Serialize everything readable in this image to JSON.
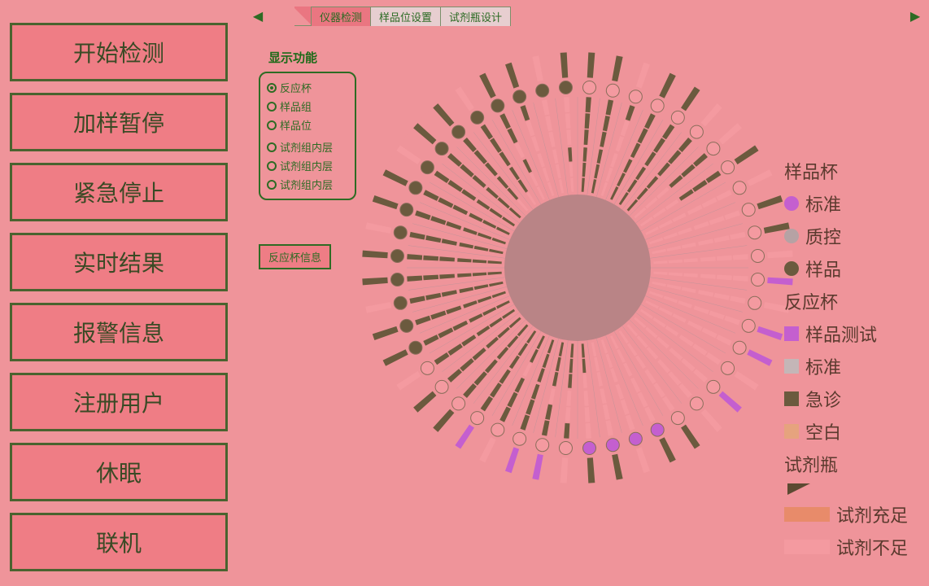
{
  "colors": {
    "bg": "#ef949a",
    "btn_bg": "#ef7d85",
    "btn_border": "#4a632f",
    "text_green": "#2e6b24",
    "brown_dark": "#6b5a3e",
    "brown_mid": "#9a8661",
    "pink_salmon": "#f49aa0",
    "coral": "#e88b6a",
    "magenta": "#c45fcf",
    "purple_dark": "#a54fb3",
    "grey": "#b6a2a4",
    "inner_bg": "#b98486"
  },
  "sidebar": {
    "buttons": [
      "开始检测",
      "加样暂停",
      "紧急停止",
      "实时结果",
      "报警信息",
      "注册用户",
      "休眠",
      "联机"
    ]
  },
  "tabs": [
    {
      "label": "仪器检测",
      "active": true
    },
    {
      "label": "样品位设置",
      "active": false
    },
    {
      "label": "试剂瓶设计",
      "active": false
    }
  ],
  "options": {
    "title": "显示功能",
    "group1": [
      {
        "label": "反应杯",
        "checked": true
      },
      {
        "label": "样品组",
        "checked": false
      },
      {
        "label": "样品位",
        "checked": false
      }
    ],
    "group2": [
      {
        "label": "试剂组内层",
        "checked": false
      },
      {
        "label": "试剂组内层",
        "checked": false
      },
      {
        "label": "试剂组内层",
        "checked": false
      }
    ],
    "button": "反应杯信息"
  },
  "legend": {
    "sample_cup_header": "样品杯",
    "sample_cup_items": [
      {
        "label": "标准",
        "color": "#c45fcf",
        "shape": "circle"
      },
      {
        "label": "质控",
        "color": "#b6a2a4",
        "shape": "circle"
      },
      {
        "label": "样品",
        "color": "#6b5a3e",
        "shape": "circle"
      }
    ],
    "reaction_cup_header": "反应杯",
    "reaction_cup_items": [
      {
        "label": "样品测试",
        "color": "#c45fcf",
        "shape": "square"
      },
      {
        "label": "标准",
        "color": "#c4b6b7",
        "shape": "square"
      },
      {
        "label": "急诊",
        "color": "#6b5a3e",
        "shape": "square"
      },
      {
        "label": "空白",
        "color": "#e6a37e",
        "shape": "square"
      }
    ],
    "reagent_header": "试剂瓶",
    "reagent_items": [
      {
        "label": "试剂充足",
        "top_color": "#e88b6a",
        "bottom_color": "#f49aa0"
      },
      {
        "label": "试剂不足",
        "top_color": "#f49aa0",
        "bottom_color": "#f49aa0"
      }
    ]
  },
  "chart": {
    "outer_radius": 265,
    "segments": 48,
    "inner_hub_radius": 90,
    "ring_radii": [
      265,
      232,
      212,
      150,
      128,
      90
    ],
    "outer_ring": {
      "r_out": 265,
      "r_in": 234,
      "colors": [
        "#6b5a3e",
        "#6b5a3e",
        "#f49aa0",
        "#6b5a3e",
        "#6b5a3e",
        "#f49aa0",
        "#f49aa0",
        "#6b5a3e",
        "#f49aa0",
        "#6b5a3e",
        "#6b5a3e",
        "#f49aa0",
        "#c45fcf",
        "#f49aa0",
        "#c45fcf",
        "#c45fcf",
        "#f49aa0",
        "#c45fcf",
        "#f49aa0",
        "#6b5a3e",
        "#6b5a3e",
        "#f49aa0",
        "#6b5a3e",
        "#6b5a3e",
        "#f49aa0",
        "#c45fcf",
        "#c45fcf",
        "#f49aa0",
        "#c45fcf",
        "#6b5a3e",
        "#6b5a3e",
        "#f49aa0",
        "#6b5a3e",
        "#6b5a3e",
        "#f49aa0",
        "#6b5a3e",
        "#6b5a3e",
        "#f49aa0",
        "#6b5a3e",
        "#6b5a3e",
        "#f49aa0",
        "#6b5a3e",
        "#6b5a3e",
        "#f49aa0",
        "#6b5a3e",
        "#6b5a3e",
        "#f49aa0",
        "#6b5a3e"
      ]
    },
    "sample_circle_ring": {
      "r": 222,
      "dot_r": 8,
      "colors": [
        "#f49aa0",
        "#f49aa0",
        "#f49aa0",
        "#f49aa0",
        "#f49aa0",
        "#f49aa0",
        "#f49aa0",
        "#f49aa0",
        "#f49aa0",
        "#f49aa0",
        "#f49aa0",
        "#f49aa0",
        "#f49aa0",
        "#f49aa0",
        "#f49aa0",
        "#f49aa0",
        "#f49aa0",
        "#f49aa0",
        "#f49aa0",
        "#f49aa0",
        "#c45fcf",
        "#c45fcf",
        "#c45fcf",
        "#c45fcf",
        "#f49aa0",
        "#f49aa0",
        "#f49aa0",
        "#f49aa0",
        "#f49aa0",
        "#f49aa0",
        "#f49aa0",
        "#f49aa0",
        "#6b5a3e",
        "#6b5a3e",
        "#6b5a3e",
        "#6b5a3e",
        "#6b5a3e",
        "#6b5a3e",
        "#6b5a3e",
        "#6b5a3e",
        "#6b5a3e",
        "#6b5a3e",
        "#6b5a3e",
        "#6b5a3e",
        "#6b5a3e",
        "#6b5a3e",
        "#6b5a3e",
        "#6b5a3e"
      ]
    },
    "middle_bars": {
      "r_out": 210,
      "r_in": 150,
      "lanes": 3,
      "fill_pattern": [
        [
          1,
          1,
          1
        ],
        [
          1,
          1,
          1
        ],
        [
          1,
          0,
          0
        ],
        [
          1,
          1,
          1
        ],
        [
          1,
          1,
          1
        ],
        [
          1,
          1,
          1
        ],
        [
          1,
          1,
          1
        ],
        [
          1,
          1,
          1
        ],
        [
          0,
          0,
          0
        ],
        [
          0,
          0,
          0
        ],
        [
          0,
          0,
          0
        ],
        [
          0,
          0,
          0
        ],
        [
          0,
          0,
          0
        ],
        [
          0,
          0,
          0
        ],
        [
          0,
          0,
          0
        ],
        [
          0,
          0,
          0
        ],
        [
          0,
          0,
          0
        ],
        [
          0,
          0,
          0
        ],
        [
          0,
          0,
          0
        ],
        [
          0,
          0,
          0
        ],
        [
          0,
          0,
          0
        ],
        [
          0,
          0,
          0
        ],
        [
          0,
          0,
          0
        ],
        [
          0,
          0,
          0
        ],
        [
          1,
          0,
          0
        ],
        [
          1,
          1,
          0
        ],
        [
          1,
          1,
          1
        ],
        [
          1,
          1,
          1
        ],
        [
          1,
          1,
          1
        ],
        [
          1,
          1,
          1
        ],
        [
          1,
          1,
          1
        ],
        [
          1,
          1,
          1
        ],
        [
          1,
          1,
          1
        ],
        [
          1,
          1,
          1
        ],
        [
          1,
          1,
          1
        ],
        [
          1,
          1,
          1
        ],
        [
          1,
          1,
          1
        ],
        [
          1,
          1,
          1
        ],
        [
          1,
          1,
          1
        ],
        [
          1,
          1,
          1
        ],
        [
          1,
          1,
          1
        ],
        [
          1,
          1,
          1
        ],
        [
          1,
          1,
          1
        ],
        [
          1,
          1,
          1
        ],
        [
          1,
          1,
          0
        ],
        [
          1,
          0,
          0
        ],
        [
          0,
          0,
          0
        ],
        [
          0,
          0,
          0
        ]
      ],
      "fill_color": "#6b5a3e",
      "empty_color": "#f49aa0"
    },
    "inner_bars": {
      "r_out": 148,
      "r_in": 92,
      "lanes": 3,
      "fill_pattern": [
        [
          1,
          1,
          1
        ],
        [
          1,
          1,
          1
        ],
        [
          0,
          0,
          0
        ],
        [
          1,
          1,
          1
        ],
        [
          1,
          1,
          1
        ],
        [
          1,
          1,
          1
        ],
        [
          0,
          0,
          0
        ],
        [
          0,
          0,
          0
        ],
        [
          0,
          0,
          0
        ],
        [
          0,
          0,
          0
        ],
        [
          0,
          0,
          0
        ],
        [
          0,
          0,
          0
        ],
        [
          0,
          0,
          0
        ],
        [
          0,
          0,
          0
        ],
        [
          0,
          0,
          0
        ],
        [
          0,
          0,
          0
        ],
        [
          0,
          0,
          0
        ],
        [
          0,
          0,
          0
        ],
        [
          0,
          0,
          0
        ],
        [
          0,
          0,
          0
        ],
        [
          0,
          0,
          0
        ],
        [
          0,
          0,
          0
        ],
        [
          0,
          0,
          0
        ],
        [
          0,
          1,
          1
        ],
        [
          1,
          1,
          1
        ],
        [
          1,
          1,
          1
        ],
        [
          1,
          1,
          1
        ],
        [
          0,
          1,
          1
        ],
        [
          1,
          1,
          1
        ],
        [
          1,
          1,
          1
        ],
        [
          1,
          1,
          1
        ],
        [
          1,
          1,
          1
        ],
        [
          1,
          1,
          1
        ],
        [
          1,
          1,
          1
        ],
        [
          1,
          1,
          1
        ],
        [
          1,
          1,
          1
        ],
        [
          1,
          1,
          1
        ],
        [
          1,
          1,
          1
        ],
        [
          1,
          1,
          1
        ],
        [
          1,
          1,
          1
        ],
        [
          1,
          1,
          1
        ],
        [
          1,
          1,
          1
        ],
        [
          1,
          1,
          0
        ],
        [
          1,
          1,
          0
        ],
        [
          1,
          0,
          0
        ],
        [
          0,
          0,
          0
        ],
        [
          0,
          0,
          0
        ],
        [
          1,
          0,
          0
        ]
      ],
      "fill_color": "#6b5a3e",
      "empty_color": "#f49aa0"
    },
    "hub_color": "#b98486"
  }
}
